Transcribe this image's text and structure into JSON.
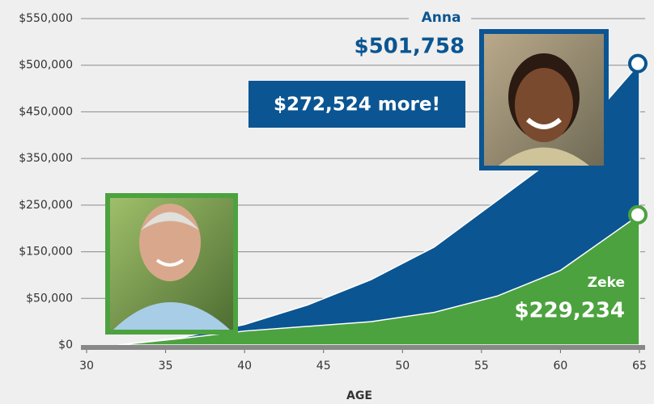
{
  "chart_data": {
    "type": "area",
    "xlabel": "AGE",
    "x": [
      32,
      36,
      40,
      44,
      48,
      52,
      56,
      60,
      65
    ],
    "series": [
      {
        "name": "Anna",
        "color": "#0b5592",
        "values": [
          0,
          8000,
          22000,
          43000,
          90000,
          160000,
          260000,
          360000,
          501758
        ],
        "value_labels": [
          null,
          null,
          null,
          null,
          null,
          null,
          null,
          null,
          "$501,758"
        ]
      },
      {
        "name": "Zeke",
        "color": "#4ca23f",
        "values": [
          0,
          7000,
          15000,
          20000,
          25000,
          35000,
          55000,
          110000,
          229234
        ],
        "value_labels": [
          null,
          null,
          null,
          null,
          null,
          null,
          null,
          null,
          "$229,234"
        ]
      }
    ],
    "annotations": [
      {
        "text": "$272,524 more!"
      }
    ],
    "xlim": [
      30,
      65
    ],
    "xticks": [
      30,
      35,
      40,
      45,
      50,
      55,
      60,
      65
    ],
    "ylim": [
      0,
      550000
    ],
    "yticks": [
      {
        "value": 0,
        "label": "$0"
      },
      {
        "value": 50000,
        "label": "$50,000"
      },
      {
        "value": 150000,
        "label": "$150,000"
      },
      {
        "value": 250000,
        "label": "$250,000"
      },
      {
        "value": 350000,
        "label": "$350,000"
      },
      {
        "value": 450000,
        "label": "$450,000"
      },
      {
        "value": 500000,
        "label": "$500,000"
      },
      {
        "value": 550000,
        "label": "$550,000"
      }
    ],
    "grid": true
  }
}
